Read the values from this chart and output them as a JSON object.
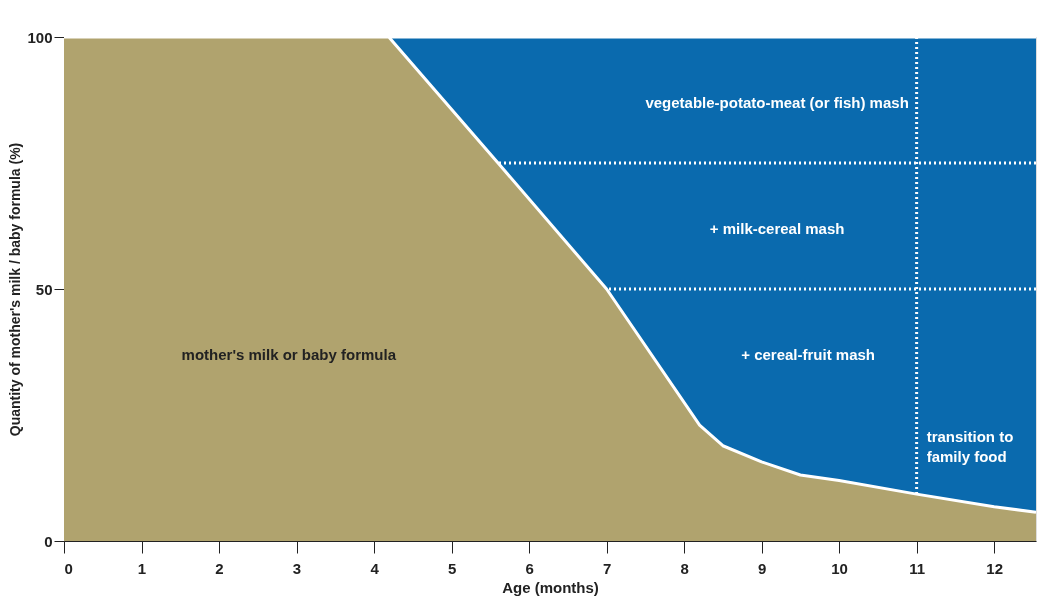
{
  "chart_data": {
    "type": "area",
    "xlabel": "Age (months)",
    "ylabel": "Quantity of mother's milk / baby formula (%)",
    "stacked": true,
    "series": [
      {
        "color": "#b0a36e",
        "x": [
          0,
          4.19,
          5.6,
          7,
          8.2,
          8.5,
          9,
          9.5,
          10,
          11,
          12,
          12.54
        ],
        "values": [
          100,
          100,
          75,
          50,
          23,
          18.9,
          15.7,
          13.1,
          12,
          9.3,
          6.8,
          5.7
        ]
      },
      {
        "color": "#0a6aae",
        "x": [
          0,
          4.19,
          5.6,
          7,
          8.2,
          8.5,
          9,
          9.5,
          10,
          11,
          12,
          12.54
        ],
        "values": [
          0,
          0,
          25,
          50,
          77,
          81.1,
          84.3,
          86.9,
          88,
          90.7,
          93.2,
          94.3
        ]
      }
    ],
    "xlim": [
      0,
      12.54
    ],
    "xticks": [
      0,
      1,
      2,
      3,
      4,
      5,
      6,
      7,
      8,
      9,
      10,
      11,
      12
    ],
    "ylim": [
      0,
      100
    ],
    "yticks": [
      0,
      50,
      100
    ],
    "ref_lines": [
      {
        "axis": "y",
        "value": 75,
        "color": "#ffffff",
        "line_style": "dotted"
      },
      {
        "axis": "y",
        "value": 50,
        "color": "#ffffff",
        "line_style": "dotted"
      },
      {
        "axis": "x",
        "value": 11,
        "label": "transition to family food",
        "color": "#ffffff",
        "line_style": "dotted"
      }
    ],
    "annotations": [
      "vegetable-potato-meat (or fish) mash",
      "+ milk-cereal mash",
      "+ cereal-fruit mash",
      "mother's milk or baby formula"
    ]
  }
}
